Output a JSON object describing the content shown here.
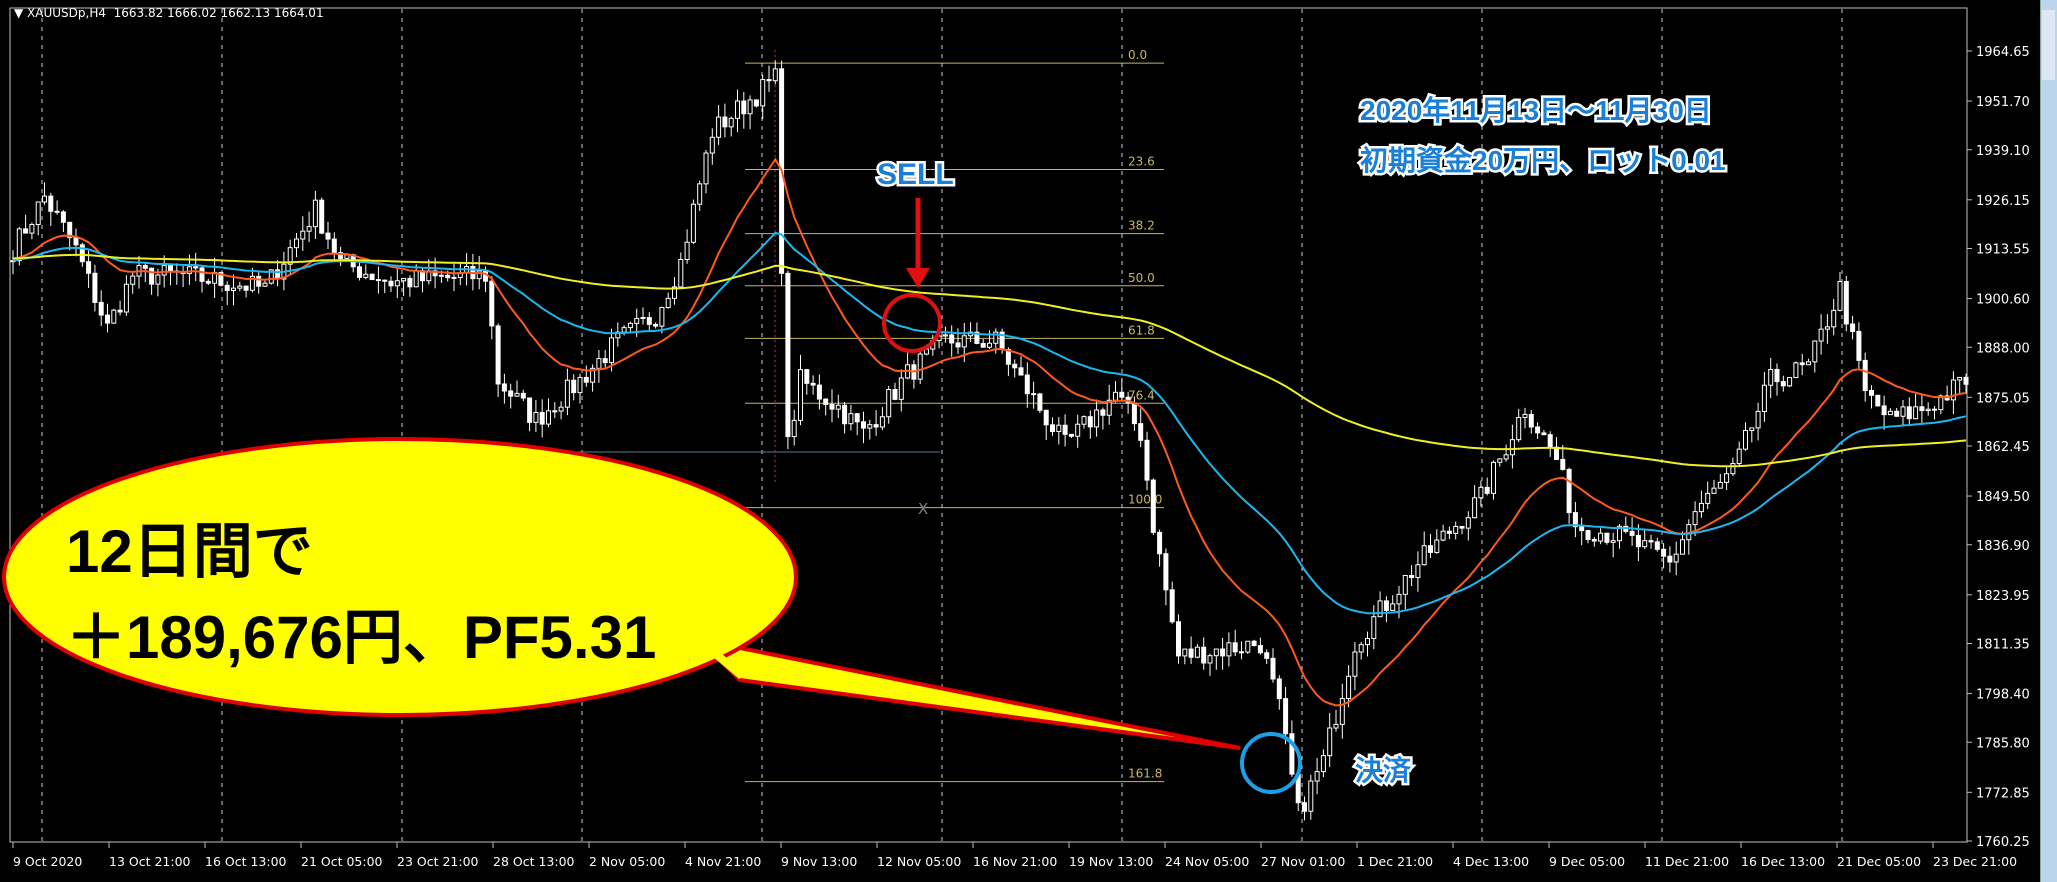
{
  "header": {
    "symbol": "XAUUSDp,H4",
    "ohlc": "1663.82 1666.02 1662.13 1664.01"
  },
  "annotation": {
    "period": "2020年11月13日～11月30日",
    "conditions": "初期資金20万円、ロット0.01",
    "sell": "SELL",
    "settle": "決済",
    "bubble_line1": "12日間で",
    "bubble_line2": "＋189,676円、PF5.31",
    "x_marker": "X"
  },
  "colors": {
    "ma_fast": "#ff5a1e",
    "ma_mid": "#1ab8f0",
    "ma_slow": "#f0f020",
    "fib": "#c8b464",
    "bubble": "#ffff00",
    "bubble_border": "#e00000",
    "label_blue": "#1a7fd6",
    "arrow": "#e01010"
  },
  "chart_data": {
    "type": "candlestick",
    "ylim": [
      1760.25,
      1964.65
    ],
    "y_ticks": [
      "1964.65",
      "1951.70",
      "1939.10",
      "1926.15",
      "1913.55",
      "1900.60",
      "1888.00",
      "1875.05",
      "1862.45",
      "1849.50",
      "1836.90",
      "1823.95",
      "1811.35",
      "1798.40",
      "1785.80",
      "1772.85",
      "1760.25"
    ],
    "x_ticks": [
      "9 Oct 2020",
      "13 Oct 21:00",
      "16 Oct 13:00",
      "21 Oct 05:00",
      "23 Oct 21:00",
      "28 Oct 13:00",
      "2 Nov 05:00",
      "4 Nov 21:00",
      "9 Nov 13:00",
      "12 Nov 05:00",
      "16 Nov 21:00",
      "19 Nov 13:00",
      "24 Nov 05:00",
      "27 Nov 01:00",
      "1 Dec 21:00",
      "4 Dec 13:00",
      "9 Dec 05:00",
      "11 Dec 21:00",
      "16 Dec 13:00",
      "21 Dec 05:00",
      "23 Dec 21:00"
    ],
    "price_path": [
      [
        0,
        1913.4
      ],
      [
        5,
        1926.9
      ],
      [
        10,
        1913.4
      ],
      [
        15,
        1893.0
      ],
      [
        19,
        1906.6
      ],
      [
        27,
        1906.6
      ],
      [
        40,
        1903.2
      ],
      [
        48,
        1923.6
      ],
      [
        52,
        1910.0
      ],
      [
        60,
        1904.9
      ],
      [
        75,
        1906.6
      ],
      [
        77,
        1879.4
      ],
      [
        83,
        1869.2
      ],
      [
        90,
        1879.4
      ],
      [
        96,
        1889.6
      ],
      [
        102,
        1896.4
      ],
      [
        106,
        1910.0
      ],
      [
        111,
        1943.9
      ],
      [
        121,
        1957.5
      ],
      [
        123,
        1862.5
      ],
      [
        125,
        1879.4
      ],
      [
        131,
        1872.6
      ],
      [
        135,
        1865.8
      ],
      [
        142,
        1881.1
      ],
      [
        148,
        1889.6
      ],
      [
        156,
        1889.6
      ],
      [
        160,
        1879.4
      ],
      [
        167,
        1862.5
      ],
      [
        171,
        1869.2
      ],
      [
        175,
        1876.0
      ],
      [
        179,
        1865.8
      ],
      [
        181,
        1842.1
      ],
      [
        185,
        1808.1
      ],
      [
        198,
        1811.5
      ],
      [
        201,
        1794.6
      ],
      [
        204,
        1767.4
      ],
      [
        208,
        1781.0
      ],
      [
        213,
        1811.5
      ],
      [
        223,
        1832.0
      ],
      [
        233,
        1848.9
      ],
      [
        240,
        1872.6
      ],
      [
        245,
        1859.1
      ],
      [
        248,
        1842.1
      ],
      [
        256,
        1838.7
      ],
      [
        263,
        1832.0
      ],
      [
        267,
        1845.5
      ],
      [
        273,
        1855.6
      ],
      [
        279,
        1879.4
      ],
      [
        285,
        1882.8
      ],
      [
        290,
        1903.2
      ],
      [
        294,
        1876.0
      ],
      [
        298,
        1869.2
      ],
      [
        304,
        1872.6
      ],
      [
        310,
        1879.4
      ]
    ],
    "fibonacci": [
      {
        "label": "0.0",
        "price": 1961.5
      },
      {
        "label": "23.6",
        "price": 1934.0
      },
      {
        "label": "38.2",
        "price": 1917.4
      },
      {
        "label": "50.0",
        "price": 1903.9
      },
      {
        "label": "61.8",
        "price": 1890.3
      },
      {
        "label": "76.4",
        "price": 1873.5
      },
      {
        "label": "100.0",
        "price": 1846.5
      },
      {
        "label": "161.8",
        "price": 1775.6
      }
    ]
  }
}
